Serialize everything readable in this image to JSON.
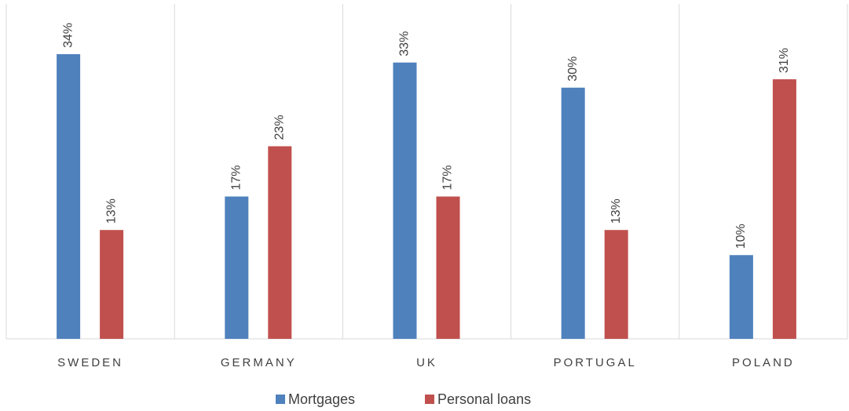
{
  "chart_data": {
    "type": "bar",
    "categories": [
      "SWEDEN",
      "GERMANY",
      "UK",
      "PORTUGAL",
      "POLAND"
    ],
    "series": [
      {
        "name": "Mortgages",
        "color": "#4f81bd",
        "values": [
          34,
          17,
          33,
          30,
          10
        ],
        "value_labels": [
          "34%",
          "17%",
          "33%",
          "30%",
          "10%"
        ]
      },
      {
        "name": "Personal loans",
        "color": "#c0504d",
        "values": [
          13,
          23,
          17,
          13,
          31
        ],
        "value_labels": [
          "13%",
          "23%",
          "17%",
          "13%",
          "31%"
        ]
      }
    ],
    "ylim": [
      0,
      40
    ],
    "legend": "bottom"
  }
}
